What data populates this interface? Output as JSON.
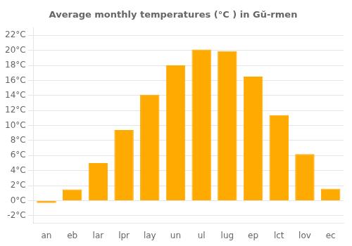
{
  "chart_data": {
    "type": "bar",
    "title": "Average monthly temperatures (°C ) in Gŭ-rmen",
    "categories": [
      "an",
      "eb",
      "lar",
      "lpr",
      "lay",
      "un",
      "ul",
      "lug",
      "ep",
      "lct",
      "lov",
      "ec"
    ],
    "values": [
      -0.3,
      1.5,
      5.0,
      9.4,
      14.1,
      18.0,
      20.1,
      19.9,
      16.5,
      11.4,
      6.2,
      1.6
    ],
    "color": "#FFAA00",
    "ylim": [
      -3,
      23
    ],
    "yticks": [
      {
        "value": -2,
        "label": "-2°C"
      },
      {
        "value": 0,
        "label": "0°C"
      },
      {
        "value": 2,
        "label": "2°C"
      },
      {
        "value": 4,
        "label": "4°C"
      },
      {
        "value": 6,
        "label": "6°C"
      },
      {
        "value": 8,
        "label": "8°C"
      },
      {
        "value": 10,
        "label": "10°C"
      },
      {
        "value": 12,
        "label": "12°C"
      },
      {
        "value": 14,
        "label": "14°C"
      },
      {
        "value": 16,
        "label": "16°C"
      },
      {
        "value": 18,
        "label": "18°C"
      },
      {
        "value": 20,
        "label": "20°C"
      },
      {
        "value": 22,
        "label": "22°C"
      }
    ],
    "grid": true
  }
}
